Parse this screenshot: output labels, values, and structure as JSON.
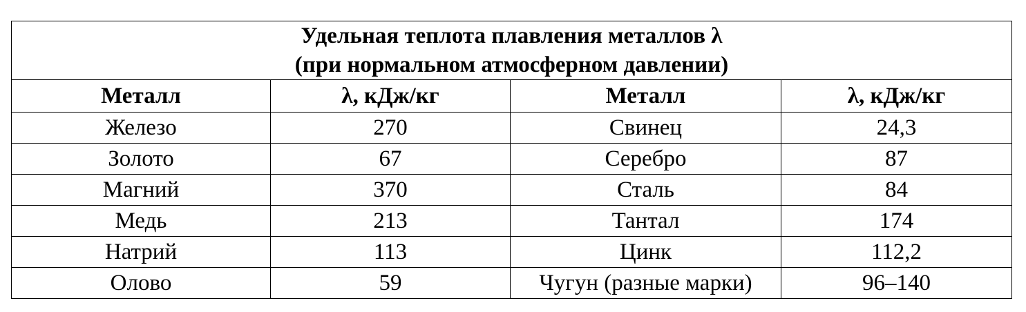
{
  "table": {
    "title_line1": "Удельная теплота плавления металлов λ",
    "title_line2": "(при нормальном атмосферном давлении)",
    "headers": {
      "metal_left": "Металл",
      "lambda_left": "λ, кДж/кг",
      "metal_right": "Металл",
      "lambda_right": "λ, кДж/кг"
    },
    "rows": [
      {
        "metal_left": "Железо",
        "value_left": "270",
        "metal_right": "Свинец",
        "value_right": "24,3"
      },
      {
        "metal_left": "Золото",
        "value_left": "67",
        "metal_right": "Серебро",
        "value_right": "87"
      },
      {
        "metal_left": "Магний",
        "value_left": "370",
        "metal_right": "Сталь",
        "value_right": "84"
      },
      {
        "metal_left": "Медь",
        "value_left": "213",
        "metal_right": "Тантал",
        "value_right": "174"
      },
      {
        "metal_left": "Натрий",
        "value_left": "113",
        "metal_right": "Цинк",
        "value_right": "112,2"
      },
      {
        "metal_left": "Олово",
        "value_left": "59",
        "metal_right": "Чугун (разные марки)",
        "value_right": "96–140"
      }
    ]
  }
}
